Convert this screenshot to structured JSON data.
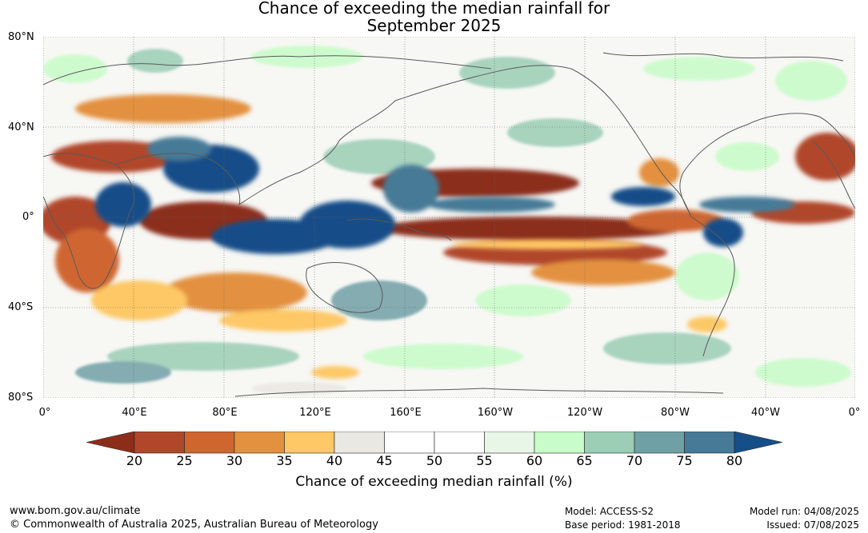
{
  "title": {
    "line1": "Chance of exceeding the median rainfall for",
    "line2": "September 2025"
  },
  "map": {
    "lat_labels": [
      "80°N",
      "40°N",
      "0°",
      "40°S",
      "80°S"
    ],
    "lon_labels": [
      "0°",
      "40°E",
      "80°E",
      "120°E",
      "160°E",
      "160°W",
      "120°W",
      "80°W",
      "40°W",
      "0°"
    ],
    "lat_range": [
      -80,
      80
    ],
    "lon_range": [
      0,
      360
    ],
    "grid": true
  },
  "colorbar": {
    "ticks": [
      "20",
      "25",
      "30",
      "35",
      "40",
      "45",
      "50",
      "55",
      "60",
      "65",
      "70",
      "75",
      "80"
    ],
    "colors": [
      "#8c2d1a",
      "#b0472a",
      "#cf6630",
      "#e3913f",
      "#fdc865",
      "#e9e8e3",
      "#ffffff",
      "#ffffff",
      "#e8f6e8",
      "#c8fcc8",
      "#9bceb5",
      "#6fa0a6",
      "#467a97",
      "#164e88"
    ],
    "label": "Chance of exceeding median rainfall (%)"
  },
  "footer": {
    "website": "www.bom.gov.au/climate",
    "copyright": "© Commonwealth of Australia 2025, Australian Bureau of Meteorology",
    "model": "Model: ACCESS-S2",
    "base_period": "Base period: 1981-2018",
    "model_run": "Model run: 04/08/2025",
    "issued": "Issued: 07/08/2025"
  }
}
